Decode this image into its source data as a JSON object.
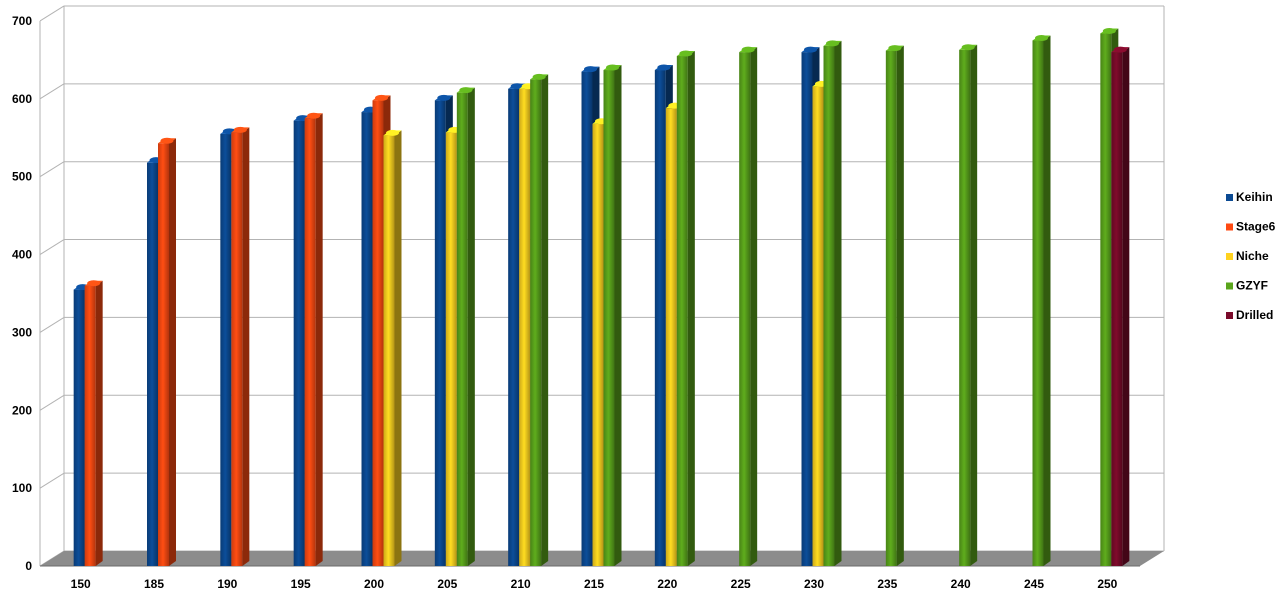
{
  "chart_data": {
    "type": "bar",
    "title": "",
    "xlabel": "",
    "ylabel": "",
    "ylim": [
      0,
      700
    ],
    "yticks": [
      0,
      100,
      200,
      300,
      400,
      500,
      600,
      700
    ],
    "grid": true,
    "legend_position": "right",
    "categories": [
      "150",
      "185",
      "190",
      "195",
      "200",
      "205",
      "210",
      "215",
      "220",
      "225",
      "230",
      "235",
      "240",
      "245",
      "250"
    ],
    "series": [
      {
        "name": "Keihin",
        "color": "#0b4a93",
        "values": [
          355,
          518,
          555,
          572,
          583,
          598,
          613,
          635,
          637,
          null,
          660,
          null,
          null,
          null,
          null
        ]
      },
      {
        "name": "Stage6",
        "color": "#ff4a12",
        "values": [
          360,
          543,
          557,
          575,
          598,
          null,
          null,
          null,
          null,
          null,
          null,
          null,
          null,
          null,
          null
        ]
      },
      {
        "name": "Niche",
        "color": "#ffd21f",
        "values": [
          null,
          null,
          null,
          null,
          553,
          557,
          613,
          568,
          588,
          null,
          616,
          null,
          null,
          null,
          null
        ]
      },
      {
        "name": "GZYF",
        "color": "#5aa51c",
        "values": [
          null,
          null,
          null,
          null,
          null,
          608,
          625,
          637,
          655,
          660,
          668,
          662,
          663,
          675,
          684
        ]
      },
      {
        "name": "Drilled",
        "color": "#7a0a2a",
        "values": [
          null,
          null,
          null,
          null,
          null,
          null,
          null,
          null,
          null,
          null,
          null,
          null,
          null,
          null,
          660
        ]
      }
    ]
  }
}
